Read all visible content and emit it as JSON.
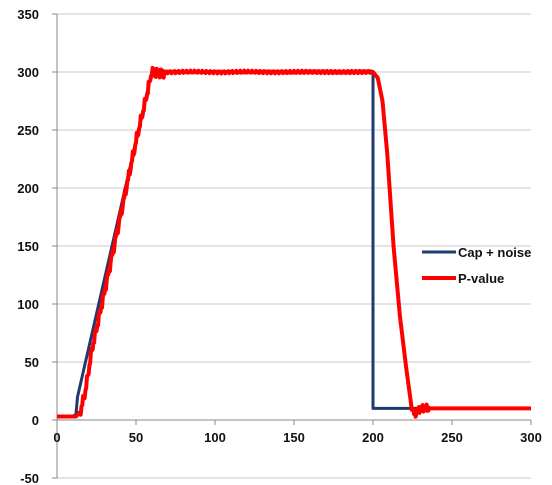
{
  "chart_data": {
    "type": "line",
    "title": "",
    "xlabel": "",
    "ylabel": "",
    "xlim": [
      0,
      300
    ],
    "ylim": [
      -50,
      350
    ],
    "x_ticks": [
      0,
      50,
      100,
      150,
      200,
      250,
      300
    ],
    "y_ticks": [
      -50,
      0,
      50,
      100,
      150,
      200,
      250,
      300,
      350
    ],
    "x_tick_labels": [
      "0",
      "50",
      "100",
      "150",
      "200",
      "250",
      "300"
    ],
    "y_tick_labels": [
      "-50",
      "0",
      "50",
      "100",
      "150",
      "200",
      "250",
      "300",
      "350"
    ],
    "grid": "horizontal",
    "legend_position": "right",
    "series": [
      {
        "name": "Cap + noise",
        "color": "#1f3a6e",
        "points": [
          [
            0,
            3
          ],
          [
            10,
            3
          ],
          [
            12,
            5
          ],
          [
            13,
            20
          ],
          [
            60,
            300
          ],
          [
            200,
            300
          ],
          [
            200,
            10
          ],
          [
            300,
            10
          ]
        ]
      },
      {
        "name": "P-value",
        "color": "#ff0000",
        "points": [
          [
            0,
            3
          ],
          [
            12,
            3
          ],
          [
            15,
            8
          ],
          [
            18,
            25
          ],
          [
            22,
            60
          ],
          [
            30,
            110
          ],
          [
            40,
            175
          ],
          [
            50,
            240
          ],
          [
            56,
            275
          ],
          [
            60,
            300
          ],
          [
            200,
            300
          ],
          [
            203,
            295
          ],
          [
            206,
            275
          ],
          [
            209,
            230
          ],
          [
            213,
            150
          ],
          [
            217,
            90
          ],
          [
            221,
            45
          ],
          [
            224,
            15
          ],
          [
            226,
            5
          ],
          [
            230,
            10
          ],
          [
            300,
            10
          ]
        ]
      }
    ]
  }
}
